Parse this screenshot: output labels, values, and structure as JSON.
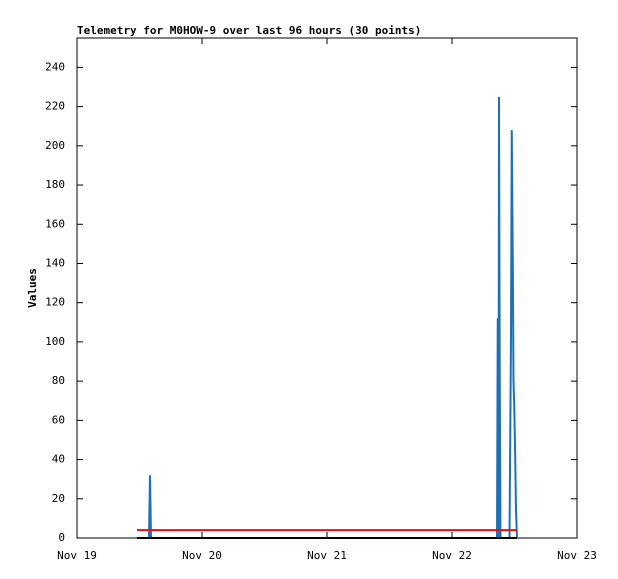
{
  "chart_data": {
    "type": "line",
    "title": "Telemetry for M0HOW-9 over last 96 hours (30 points)",
    "y_label": "Values",
    "xlim": [
      0,
      4
    ],
    "ylim": [
      0,
      255
    ],
    "xticks": [
      {
        "value": 0,
        "label": "Nov 19"
      },
      {
        "value": 1,
        "label": "Nov 20"
      },
      {
        "value": 2,
        "label": "Nov 21"
      },
      {
        "value": 3,
        "label": "Nov 22"
      },
      {
        "value": 4,
        "label": "Nov 23"
      }
    ],
    "yticks": [
      0,
      20,
      40,
      60,
      80,
      100,
      120,
      140,
      160,
      180,
      200,
      220,
      240
    ],
    "series": [
      {
        "color": "#1f6fb4",
        "x": [
          0.48,
          0.576,
          0.584,
          0.592,
          1.5,
          2.5,
          3.36,
          3.366,
          3.372,
          3.376,
          3.382,
          3.388,
          3.46,
          3.472,
          3.478,
          3.486,
          3.492,
          3.498,
          3.506,
          3.512,
          3.52
        ],
        "values": [
          0,
          0,
          32,
          0,
          0,
          0,
          0,
          112,
          0,
          225,
          80,
          0,
          0,
          104,
          208,
          144,
          80,
          67,
          40,
          14,
          0
        ]
      },
      {
        "color": "#e01010",
        "x": [
          0.48,
          3.52
        ],
        "values": [
          4,
          4
        ]
      },
      {
        "color": "#000000",
        "x": [
          0.48,
          3.52
        ],
        "values": [
          0,
          0
        ]
      }
    ]
  }
}
